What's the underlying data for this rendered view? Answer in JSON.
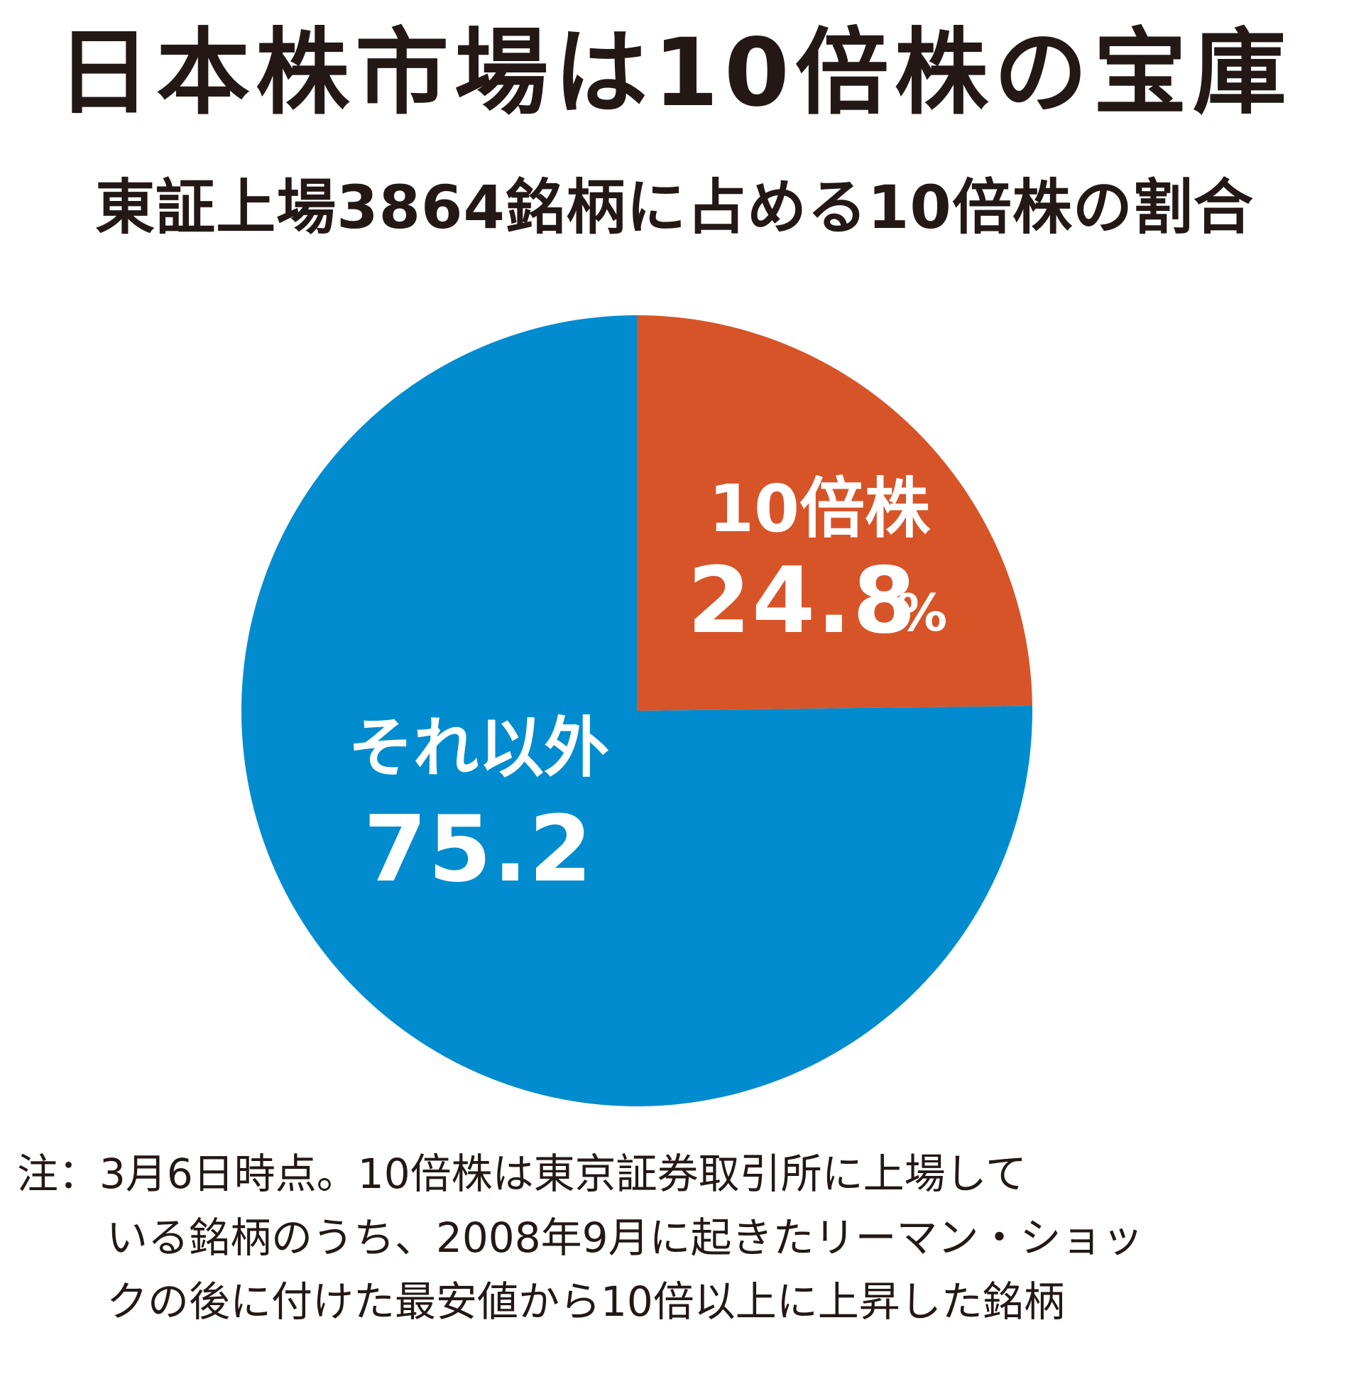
{
  "title": "日本株市場は10倍株の宝庫",
  "subtitle": "東証上場3864銘柄に占める10倍株の割合",
  "chart_data": {
    "type": "pie",
    "title": "日本株市場は10倍株の宝庫",
    "subtitle": "東証上場3864銘柄に占める10倍株の割合",
    "unit": "%",
    "start_angle_deg": 0,
    "direction": "clockwise",
    "slices": [
      {
        "label": "10倍株",
        "value": 24.8,
        "value_label": "24.8",
        "unit_label": "%",
        "color": "#d75428"
      },
      {
        "label": "それ以外",
        "value": 75.2,
        "value_label": "75.2",
        "unit_label": "",
        "color": "#008ccf"
      }
    ]
  },
  "note": {
    "lines": [
      "注：3月6日時点。10倍株は東京証券取引所に上場して",
      "いる銘柄のうち、2008年9月に起きたリーマン・ショッ",
      "クの後に付けた最安値から10倍以上に上昇した銘柄"
    ]
  },
  "colors": {
    "text": "#231815",
    "label_text": "#ffffff"
  }
}
